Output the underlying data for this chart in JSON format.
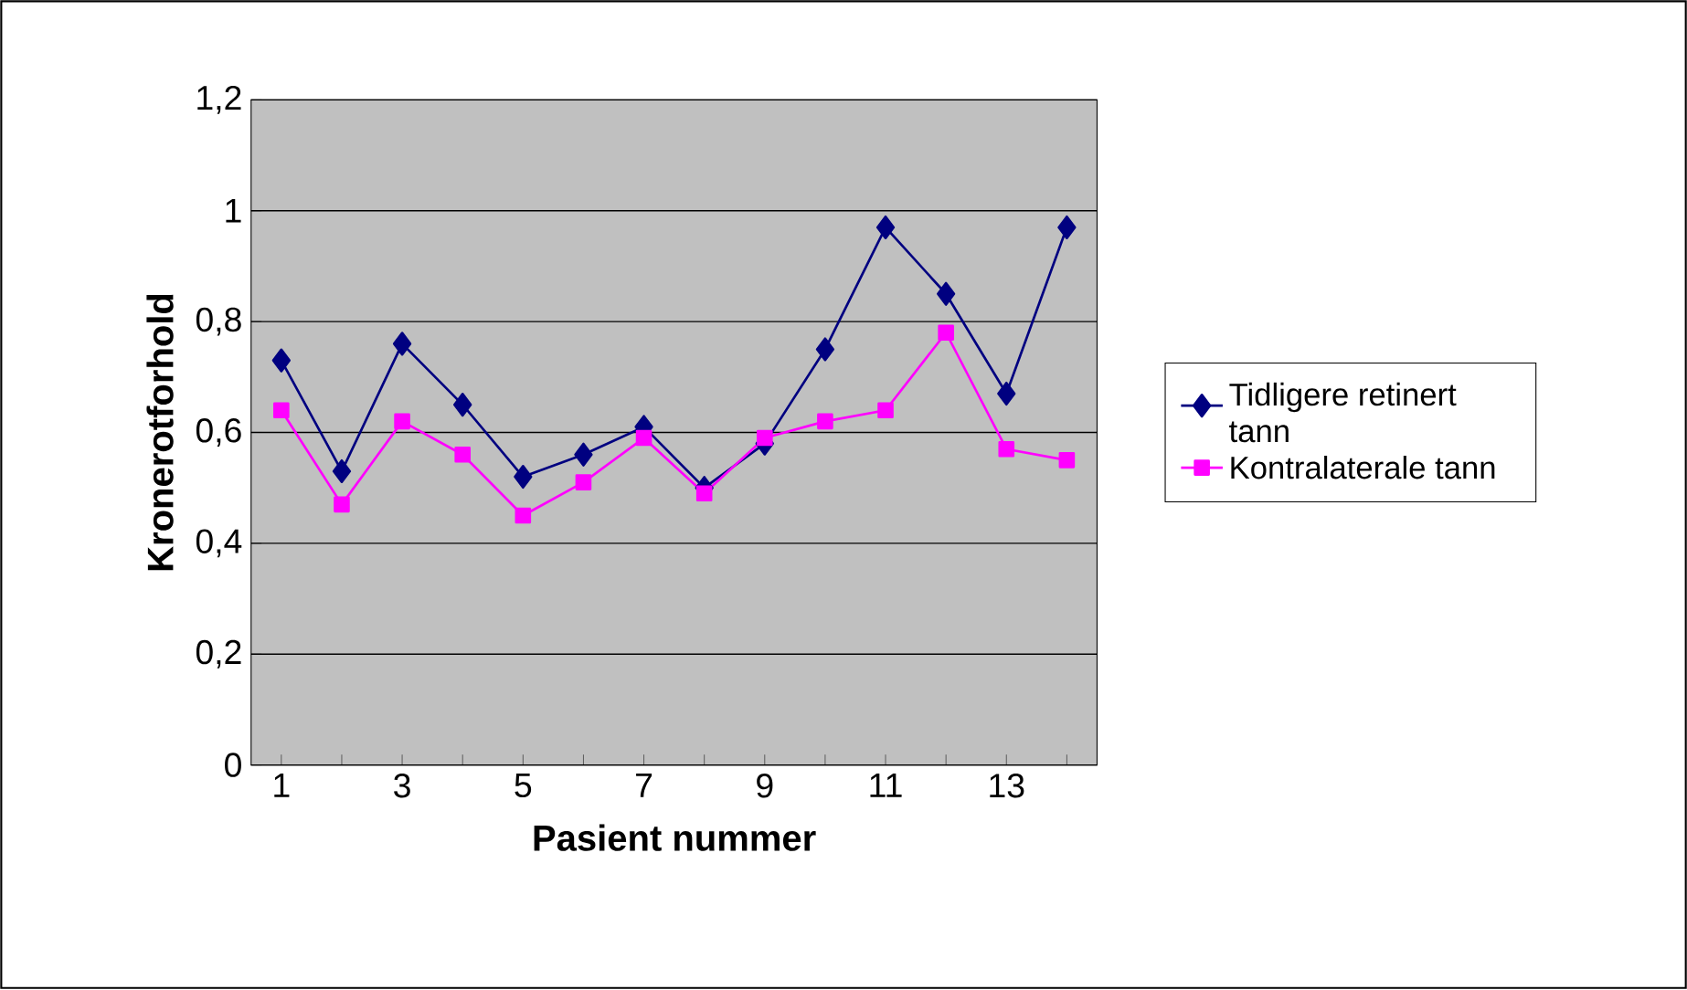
{
  "chart_data": {
    "type": "line",
    "xlabel": "Pasient nummer",
    "ylabel": "Kronerotforhold",
    "categories": [
      "1",
      null,
      "3",
      null,
      "5",
      null,
      "7",
      null,
      "9",
      null,
      "11",
      null,
      "13",
      null
    ],
    "series": [
      {
        "name": "Tidligere retinert tann",
        "color": "#000080",
        "marker": "diamond",
        "values": [
          0.73,
          0.53,
          0.76,
          0.65,
          0.52,
          0.56,
          0.61,
          0.5,
          0.58,
          0.75,
          0.97,
          0.85,
          0.67,
          0.97
        ]
      },
      {
        "name": "Kontralaterale tann",
        "color": "#ff00ff",
        "marker": "square",
        "values": [
          0.64,
          0.47,
          0.62,
          0.56,
          0.45,
          0.51,
          0.59,
          0.49,
          0.59,
          0.62,
          0.64,
          0.78,
          0.57,
          0.55
        ]
      }
    ],
    "ylim": [
      0,
      1.2
    ],
    "yticks": [
      0,
      {
        "value": 0.2,
        "label": "0,2"
      },
      {
        "value": 0.4,
        "label": "0,4"
      },
      {
        "value": 0.6,
        "label": "0,6"
      },
      {
        "value": 0.8,
        "label": "0,8"
      },
      1,
      {
        "value": 1.2,
        "label": "1,2"
      }
    ],
    "grid": "y",
    "legend": "right"
  }
}
